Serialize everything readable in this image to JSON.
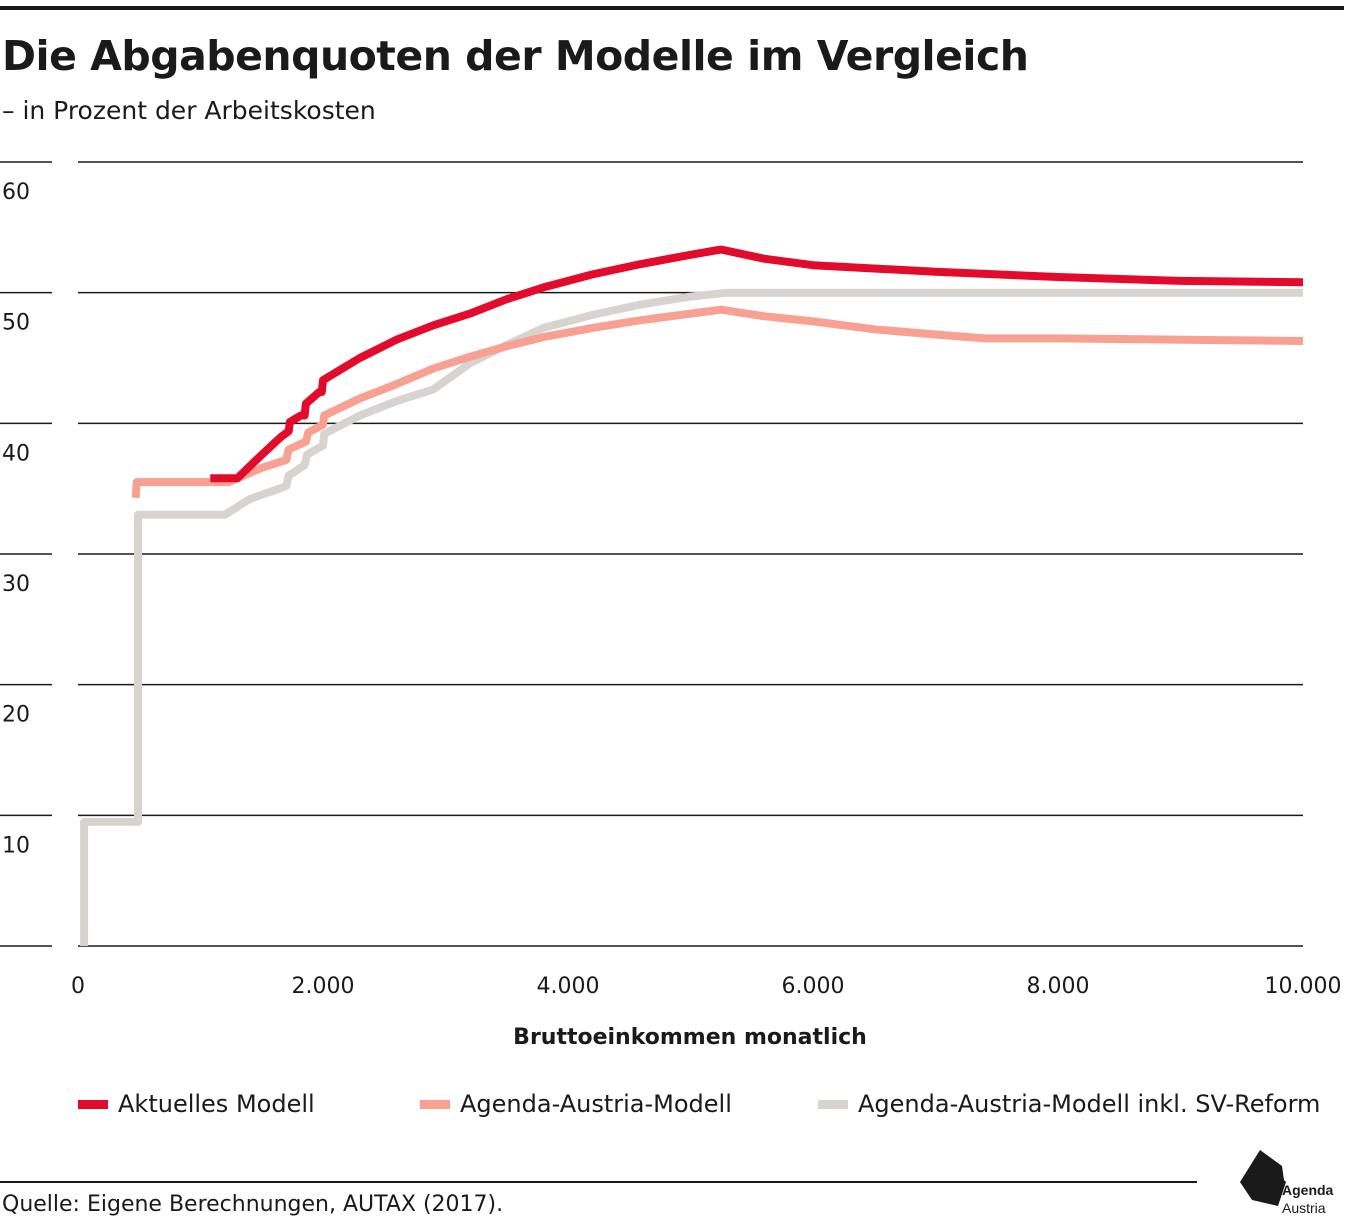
{
  "title": "Die Abgabenquoten der Modelle im Vergleich",
  "subtitle": "– in Prozent der Arbeitskosten",
  "source": "Quelle: Eigene Berechnungen,  AUTAX (2017).",
  "logo": {
    "line1": "Agenda",
    "line2": "Austria"
  },
  "chart_data": {
    "type": "line",
    "title": "Die Abgabenquoten der Modelle im Vergleich",
    "subtitle": "– in Prozent der Arbeitskosten",
    "xlabel": "Bruttoeinkommen monatlich",
    "ylabel": "",
    "xlim": [
      0,
      10000
    ],
    "ylim": [
      0,
      60
    ],
    "x_ticks": [
      0,
      2000,
      4000,
      6000,
      8000,
      10000
    ],
    "x_tick_labels": [
      "0",
      "2.000",
      "4.000",
      "6.000",
      "8.000",
      "10.000"
    ],
    "y_ticks": [
      10,
      20,
      30,
      40,
      50,
      60
    ],
    "y_tick_labels": [
      "10",
      "20",
      "30",
      "40",
      "50",
      "60"
    ],
    "grid": true,
    "legend_position": "bottom",
    "series": [
      {
        "name": "Aktuelles Modell",
        "color": "#e30b2b",
        "points": [
          [
            1080,
            35.8
          ],
          [
            1300,
            35.8
          ],
          [
            1500,
            37.6
          ],
          [
            1650,
            38.9
          ],
          [
            1720,
            39.4
          ],
          [
            1730,
            40.1
          ],
          [
            1820,
            40.6
          ],
          [
            1850,
            40.6
          ],
          [
            1860,
            41.5
          ],
          [
            1970,
            42.4
          ],
          [
            1990,
            42.4
          ],
          [
            2000,
            43.3
          ],
          [
            2300,
            45.0
          ],
          [
            2600,
            46.4
          ],
          [
            2900,
            47.5
          ],
          [
            3200,
            48.4
          ],
          [
            3500,
            49.5
          ],
          [
            3800,
            50.4
          ],
          [
            4200,
            51.4
          ],
          [
            4600,
            52.2
          ],
          [
            5000,
            52.9
          ],
          [
            5250,
            53.3
          ],
          [
            5600,
            52.6
          ],
          [
            6000,
            52.1
          ],
          [
            7000,
            51.6
          ],
          [
            8000,
            51.2
          ],
          [
            9000,
            50.9
          ],
          [
            10000,
            50.8
          ]
        ]
      },
      {
        "name": "Agenda-Austria-Modell",
        "color": "#f8a193",
        "points": [
          [
            470,
            34.3
          ],
          [
            480,
            35.5
          ],
          [
            1230,
            35.5
          ],
          [
            1500,
            36.6
          ],
          [
            1700,
            37.2
          ],
          [
            1720,
            38.0
          ],
          [
            1860,
            38.6
          ],
          [
            1880,
            39.3
          ],
          [
            2000,
            39.9
          ],
          [
            2010,
            40.6
          ],
          [
            2300,
            41.9
          ],
          [
            2600,
            43.0
          ],
          [
            2900,
            44.2
          ],
          [
            3200,
            45.1
          ],
          [
            3500,
            45.9
          ],
          [
            3800,
            46.6
          ],
          [
            4200,
            47.3
          ],
          [
            4600,
            47.9
          ],
          [
            5000,
            48.4
          ],
          [
            5250,
            48.7
          ],
          [
            5600,
            48.2
          ],
          [
            6000,
            47.8
          ],
          [
            6500,
            47.2
          ],
          [
            7000,
            46.8
          ],
          [
            7400,
            46.5
          ],
          [
            8000,
            46.5
          ],
          [
            9000,
            46.4
          ],
          [
            10000,
            46.3
          ]
        ]
      },
      {
        "name": "Agenda-Austria-Modell inkl. SV-Reform",
        "color": "#d7d3cf",
        "points": [
          [
            50,
            0
          ],
          [
            50,
            9.5
          ],
          [
            490,
            9.5
          ],
          [
            490,
            33.0
          ],
          [
            1200,
            33.0
          ],
          [
            1400,
            34.2
          ],
          [
            1700,
            35.2
          ],
          [
            1720,
            36.0
          ],
          [
            1850,
            36.8
          ],
          [
            1870,
            37.6
          ],
          [
            2000,
            38.3
          ],
          [
            2010,
            39.2
          ],
          [
            2300,
            40.6
          ],
          [
            2600,
            41.7
          ],
          [
            2900,
            42.6
          ],
          [
            3200,
            44.6
          ],
          [
            3500,
            46.0
          ],
          [
            3800,
            47.3
          ],
          [
            4200,
            48.3
          ],
          [
            4600,
            49.1
          ],
          [
            5000,
            49.7
          ],
          [
            5300,
            50.0
          ],
          [
            6000,
            50.0
          ],
          [
            8000,
            50.0
          ],
          [
            10000,
            50.0
          ]
        ]
      }
    ]
  }
}
